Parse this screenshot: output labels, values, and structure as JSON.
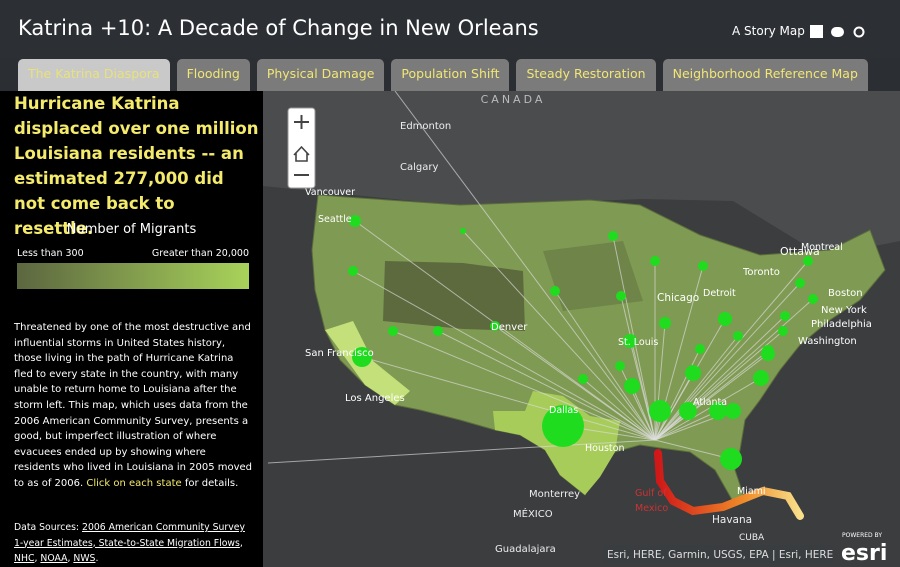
{
  "header": {
    "title": "Katrina +10: A Decade of Change in New Orleans",
    "subtitle": "A Story Map"
  },
  "tabs": [
    "The Katrina Diaspora",
    "Flooding",
    "Physical Damage",
    "Population Shift",
    "Steady Restoration",
    "Neighborhood Reference Map"
  ],
  "panel": {
    "headline": "Hurricane Katrina displaced over one million Louisiana residents -- an estimated 277,000 did not come back to resettle.",
    "legend": {
      "title": "Number of Migrants",
      "low": "Less than 300",
      "high": "Greater than 20,000"
    },
    "body": "Threatened by one of the most destructive and influential storms in United States history, those living in the path of Hurricane Katrina fled to every state in the country, with many unable to return home to Louisiana after the storm left. This map, which uses data from the 2006 American Community Survey, presents a good, but imperfect illustration of where evacuees ended up by showing where residents who lived in Louisiana in 2005 moved to as of 2006.",
    "body_link": "Click on each state",
    "body_end": "for details.",
    "sources_label": "Data Sources:",
    "sources": [
      "2006 American Community Survey 1-year Estimates, State-to-State Migration Flows",
      "NHC",
      "NOAA",
      "NWS"
    ],
    "separator": ", ",
    "end": "."
  },
  "map": {
    "labels": [
      "CANADA",
      "Edmonton",
      "Calgary",
      "Vancouver",
      "Seattle",
      "Ottawa",
      "Montreal",
      "Toronto",
      "Boston",
      "New York",
      "Philadelphia",
      "Washington",
      "Chicago",
      "Detroit",
      "Denver",
      "St. Louis",
      "San Francisco",
      "Los Angeles",
      "Dallas",
      "Atlanta",
      "Houston",
      "Monterrey",
      "MÉXICO",
      "Gulf of",
      "Mexico",
      "Miami",
      "Havana",
      "CUBA",
      "Guadalajara"
    ],
    "attribution": "Esri, HERE, Garmin, USGS, EPA | Esri, HERE",
    "powered": "POWERED BY",
    "brand": "esri"
  }
}
